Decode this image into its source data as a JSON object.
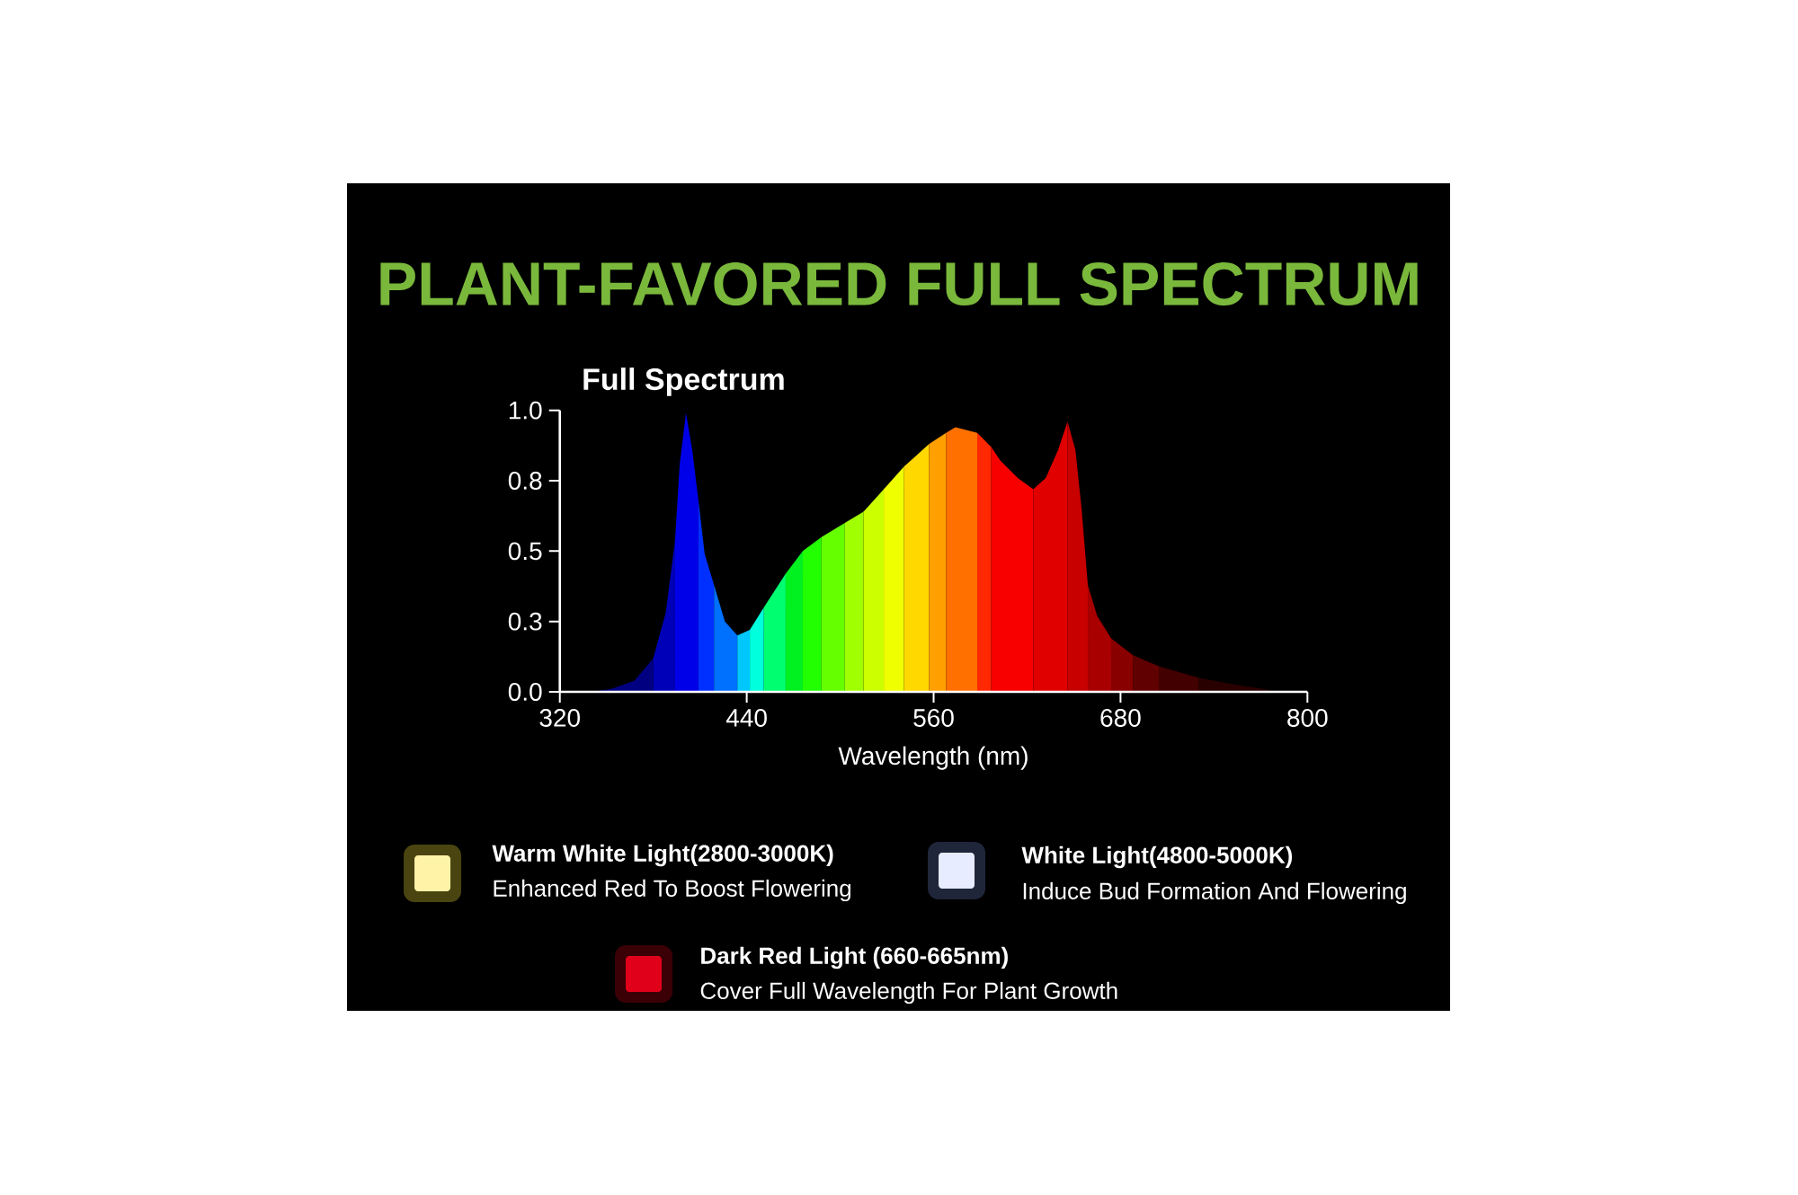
{
  "chart_data": {
    "type": "area",
    "title": "PLANT-FAVORED FULL SPECTRUM",
    "subtitle": "Full Spectrum",
    "xlabel": "Wavelength (nm)",
    "series": [
      {
        "color": "#000080",
        "x": [
          320,
          340,
          353,
          368,
          380
        ],
        "values": [
          0,
          0,
          0.01,
          0.04,
          0.12
        ]
      },
      {
        "color": "#0000b8",
        "x": [
          380,
          388,
          394
        ],
        "values": [
          0.12,
          0.28,
          0.54
        ]
      },
      {
        "color": "#0000e8",
        "x": [
          394,
          397,
          401,
          405,
          409
        ],
        "values": [
          0.54,
          0.81,
          0.99,
          0.86,
          0.68
        ]
      },
      {
        "color": "#0030ff",
        "x": [
          409,
          413,
          419
        ],
        "values": [
          0.68,
          0.49,
          0.38
        ]
      },
      {
        "color": "#0070ff",
        "x": [
          419,
          426,
          434
        ],
        "values": [
          0.38,
          0.25,
          0.2
        ]
      },
      {
        "color": "#00c8ff",
        "x": [
          434,
          442
        ],
        "values": [
          0.2,
          0.22
        ]
      },
      {
        "color": "#00ffdd",
        "x": [
          442,
          451
        ],
        "values": [
          0.22,
          0.3
        ]
      },
      {
        "color": "#00ff70",
        "x": [
          451,
          465
        ],
        "values": [
          0.3,
          0.42
        ]
      },
      {
        "color": "#00f020",
        "x": [
          465,
          476
        ],
        "values": [
          0.42,
          0.5
        ]
      },
      {
        "color": "#22ff00",
        "x": [
          476,
          488
        ],
        "values": [
          0.5,
          0.55
        ]
      },
      {
        "color": "#66ff00",
        "x": [
          488,
          503
        ],
        "values": [
          0.55,
          0.6
        ]
      },
      {
        "color": "#a0ff00",
        "x": [
          503,
          515
        ],
        "values": [
          0.6,
          0.64
        ]
      },
      {
        "color": "#ccff00",
        "x": [
          515,
          528
        ],
        "values": [
          0.64,
          0.72
        ]
      },
      {
        "color": "#f0ff00",
        "x": [
          528,
          541
        ],
        "values": [
          0.72,
          0.8
        ]
      },
      {
        "color": "#ffd800",
        "x": [
          541,
          557
        ],
        "values": [
          0.8,
          0.88
        ]
      },
      {
        "color": "#ffa000",
        "x": [
          557,
          568
        ],
        "values": [
          0.88,
          0.92
        ]
      },
      {
        "color": "#ff7000",
        "x": [
          568,
          574,
          588
        ],
        "values": [
          0.92,
          0.94,
          0.92
        ]
      },
      {
        "color": "#ff2800",
        "x": [
          588,
          597
        ],
        "values": [
          0.92,
          0.87
        ]
      },
      {
        "color": "#f80000",
        "x": [
          597,
          603,
          614,
          624
        ],
        "values": [
          0.87,
          0.82,
          0.76,
          0.72
        ]
      },
      {
        "color": "#e00000",
        "x": [
          624,
          632,
          640,
          646
        ],
        "values": [
          0.72,
          0.76,
          0.86,
          0.96
        ]
      },
      {
        "color": "#c80000",
        "x": [
          646,
          651,
          655,
          659
        ],
        "values": [
          0.96,
          0.86,
          0.65,
          0.38
        ]
      },
      {
        "color": "#a80000",
        "x": [
          659,
          665,
          674
        ],
        "values": [
          0.38,
          0.27,
          0.19
        ]
      },
      {
        "color": "#880000",
        "x": [
          674,
          688
        ],
        "values": [
          0.19,
          0.13
        ]
      },
      {
        "color": "#600000",
        "x": [
          688,
          705
        ],
        "values": [
          0.13,
          0.09
        ]
      },
      {
        "color": "#420000",
        "x": [
          705,
          730
        ],
        "values": [
          0.09,
          0.05
        ]
      },
      {
        "color": "#280000",
        "x": [
          730,
          749,
          772,
          780
        ],
        "values": [
          0.05,
          0.03,
          0.01,
          0
        ]
      }
    ],
    "xlim": [
      320,
      800
    ],
    "ylim": [
      0,
      1
    ],
    "xticks": [
      320,
      440,
      560,
      680,
      800
    ],
    "yticks": [
      {
        "value": 0,
        "label": "0.0"
      },
      {
        "value": 0.25,
        "label": "0.3"
      },
      {
        "value": 0.5,
        "label": "0.5"
      },
      {
        "value": 0.75,
        "label": "0.8"
      },
      {
        "value": 1,
        "label": "1.0"
      }
    ],
    "grid": false,
    "annotations": [
      "Warm White Light(2800-3000K)",
      "Enhanced Red To Boost Flowering",
      "White Light(4800-5000K)",
      "Induce Bud Formation And Flowering",
      "Dark Red Light (660-665nm)",
      "Cover Full Wavelength For Plant Growth"
    ]
  }
}
